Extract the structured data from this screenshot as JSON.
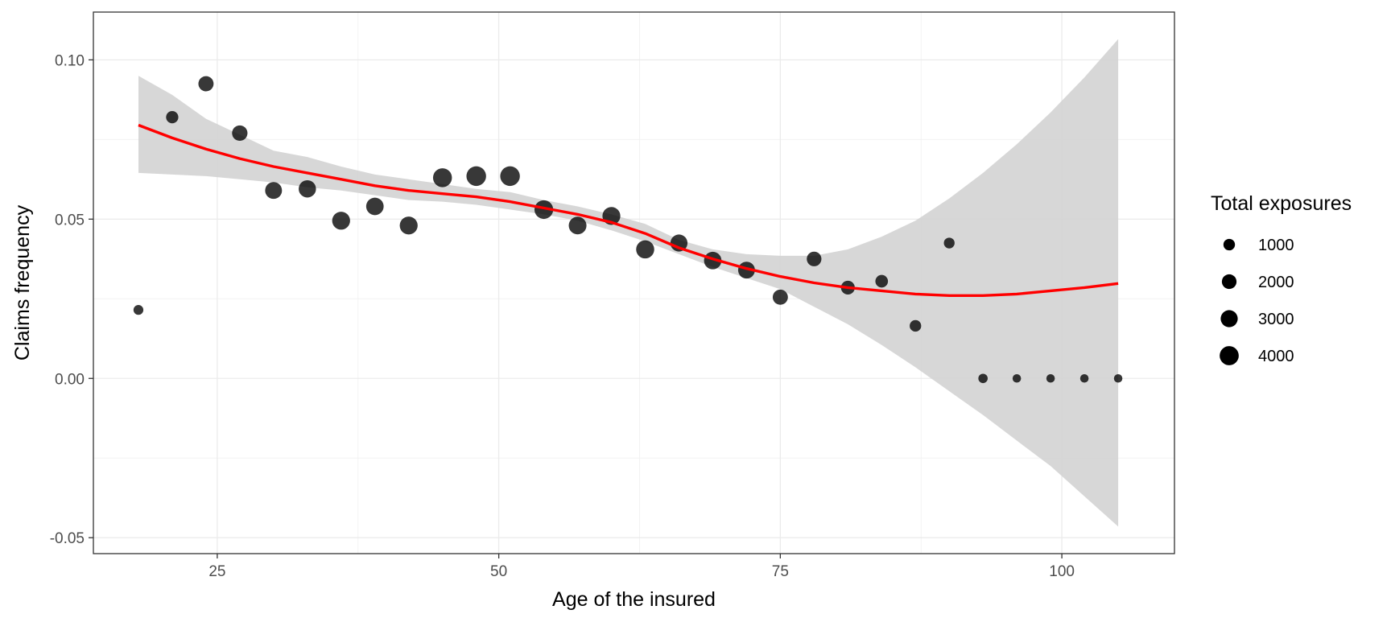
{
  "chart_data": {
    "type": "scatter",
    "xlabel": "Age of the insured",
    "ylabel": "Claims frequency",
    "xlim": [
      14,
      110
    ],
    "ylim": [
      -0.055,
      0.115
    ],
    "x_ticks": [
      25,
      50,
      75,
      100
    ],
    "y_ticks": [
      -0.05,
      0.0,
      0.05,
      0.1
    ],
    "x_tick_labels": [
      "25",
      "50",
      "75",
      "100"
    ],
    "y_tick_labels": [
      "-0.05",
      "0.00",
      "0.05",
      "0.10"
    ],
    "grid": true,
    "legend": {
      "title": "Total exposures",
      "position": "right",
      "entries": [
        {
          "label": "1000",
          "size": 1000
        },
        {
          "label": "2000",
          "size": 2000
        },
        {
          "label": "3000",
          "size": 3000
        },
        {
          "label": "4000",
          "size": 4000
        }
      ]
    },
    "points": [
      {
        "x": 18,
        "y": 0.0215,
        "exposure": 600
      },
      {
        "x": 21,
        "y": 0.082,
        "exposure": 1200
      },
      {
        "x": 24,
        "y": 0.0925,
        "exposure": 2200
      },
      {
        "x": 27,
        "y": 0.077,
        "exposure": 2300
      },
      {
        "x": 30,
        "y": 0.059,
        "exposure": 2900
      },
      {
        "x": 33,
        "y": 0.0595,
        "exposure": 3100
      },
      {
        "x": 36,
        "y": 0.0495,
        "exposure": 3400
      },
      {
        "x": 39,
        "y": 0.054,
        "exposure": 3200
      },
      {
        "x": 42,
        "y": 0.048,
        "exposure": 3400
      },
      {
        "x": 45,
        "y": 0.063,
        "exposure": 3900
      },
      {
        "x": 48,
        "y": 0.0635,
        "exposure": 4300
      },
      {
        "x": 51,
        "y": 0.0635,
        "exposure": 4300
      },
      {
        "x": 54,
        "y": 0.053,
        "exposure": 3800
      },
      {
        "x": 57,
        "y": 0.048,
        "exposure": 3300
      },
      {
        "x": 60,
        "y": 0.051,
        "exposure": 3400
      },
      {
        "x": 63,
        "y": 0.0405,
        "exposure": 3500
      },
      {
        "x": 66,
        "y": 0.0425,
        "exposure": 3000
      },
      {
        "x": 69,
        "y": 0.037,
        "exposure": 3200
      },
      {
        "x": 72,
        "y": 0.034,
        "exposure": 2900
      },
      {
        "x": 75,
        "y": 0.0255,
        "exposure": 2200
      },
      {
        "x": 78,
        "y": 0.0375,
        "exposure": 2000
      },
      {
        "x": 81,
        "y": 0.0285,
        "exposure": 1700
      },
      {
        "x": 84,
        "y": 0.0305,
        "exposure": 1300
      },
      {
        "x": 87,
        "y": 0.0165,
        "exposure": 1000
      },
      {
        "x": 90,
        "y": 0.0425,
        "exposure": 800
      },
      {
        "x": 93,
        "y": 0.0,
        "exposure": 500
      },
      {
        "x": 96,
        "y": 0.0,
        "exposure": 350
      },
      {
        "x": 99,
        "y": 0.0,
        "exposure": 350
      },
      {
        "x": 102,
        "y": 0.0,
        "exposure": 350
      },
      {
        "x": 105,
        "y": 0.0,
        "exposure": 350
      }
    ],
    "smooth": {
      "x": [
        18,
        21,
        24,
        27,
        30,
        33,
        36,
        39,
        42,
        45,
        48,
        51,
        54,
        57,
        60,
        63,
        66,
        69,
        72,
        75,
        78,
        81,
        84,
        87,
        90,
        93,
        96,
        99,
        102,
        105
      ],
      "y": [
        0.0795,
        0.0755,
        0.072,
        0.069,
        0.0665,
        0.0645,
        0.0625,
        0.0605,
        0.059,
        0.058,
        0.057,
        0.0555,
        0.0535,
        0.0515,
        0.049,
        0.0455,
        0.041,
        0.0375,
        0.0345,
        0.032,
        0.03,
        0.0285,
        0.0275,
        0.0265,
        0.026,
        0.026,
        0.0265,
        0.0275,
        0.0285,
        0.0298
      ],
      "lower": [
        0.0645,
        0.064,
        0.0635,
        0.0625,
        0.0615,
        0.06,
        0.059,
        0.0575,
        0.056,
        0.0555,
        0.0545,
        0.053,
        0.0515,
        0.0495,
        0.0465,
        0.043,
        0.039,
        0.035,
        0.0315,
        0.028,
        0.0225,
        0.017,
        0.0105,
        0.0035,
        -0.004,
        -0.0115,
        -0.0195,
        -0.0275,
        -0.037,
        -0.0465
      ],
      "upper": [
        0.095,
        0.089,
        0.0815,
        0.0765,
        0.0715,
        0.0695,
        0.0665,
        0.064,
        0.0625,
        0.061,
        0.0595,
        0.0585,
        0.056,
        0.054,
        0.0515,
        0.0485,
        0.0435,
        0.0405,
        0.039,
        0.0385,
        0.0385,
        0.0405,
        0.0445,
        0.0495,
        0.0565,
        0.0645,
        0.0735,
        0.0835,
        0.0945,
        0.1065
      ],
      "line_color": "#ff0000",
      "band_color": "#d3d3d3"
    },
    "point_color": "#000000"
  }
}
